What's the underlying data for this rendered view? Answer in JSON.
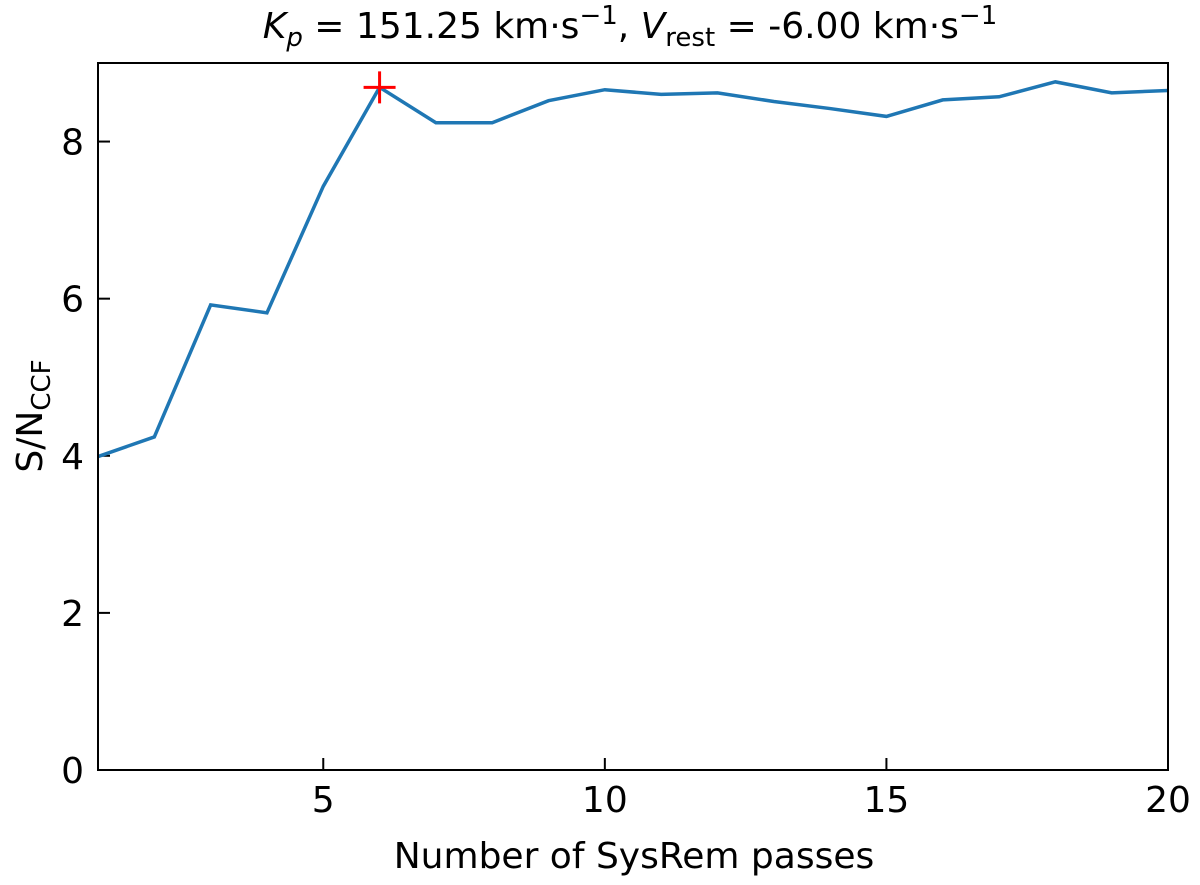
{
  "chart_data": {
    "type": "line",
    "title": [
      "K",
      "p",
      " =  151.25 km·s",
      "−1",
      ", ",
      "V",
      "rest",
      " = -6.00 km·s",
      "−1"
    ],
    "xlabel": "Number of SysRem passes",
    "ylabel": [
      "S/N",
      "CCF"
    ],
    "x": [
      1,
      2,
      3,
      4,
      5,
      6,
      7,
      8,
      9,
      10,
      11,
      12,
      13,
      14,
      15,
      16,
      17,
      18,
      19,
      20
    ],
    "series": [
      {
        "color": "#1f77b4",
        "values": [
          3.99,
          4.24,
          5.92,
          5.82,
          7.43,
          8.69,
          8.24,
          8.24,
          8.52,
          8.66,
          8.6,
          8.62,
          8.51,
          8.42,
          8.32,
          8.53,
          8.57,
          8.76,
          8.62,
          8.65
        ]
      }
    ],
    "marker": {
      "x": 6,
      "y": 8.69,
      "color": "#ff0000"
    },
    "xlim": [
      1,
      20
    ],
    "ylim": [
      0,
      9
    ],
    "xticks": [
      5,
      10,
      15,
      20
    ],
    "yticks": [
      0,
      2,
      4,
      6,
      8
    ]
  }
}
